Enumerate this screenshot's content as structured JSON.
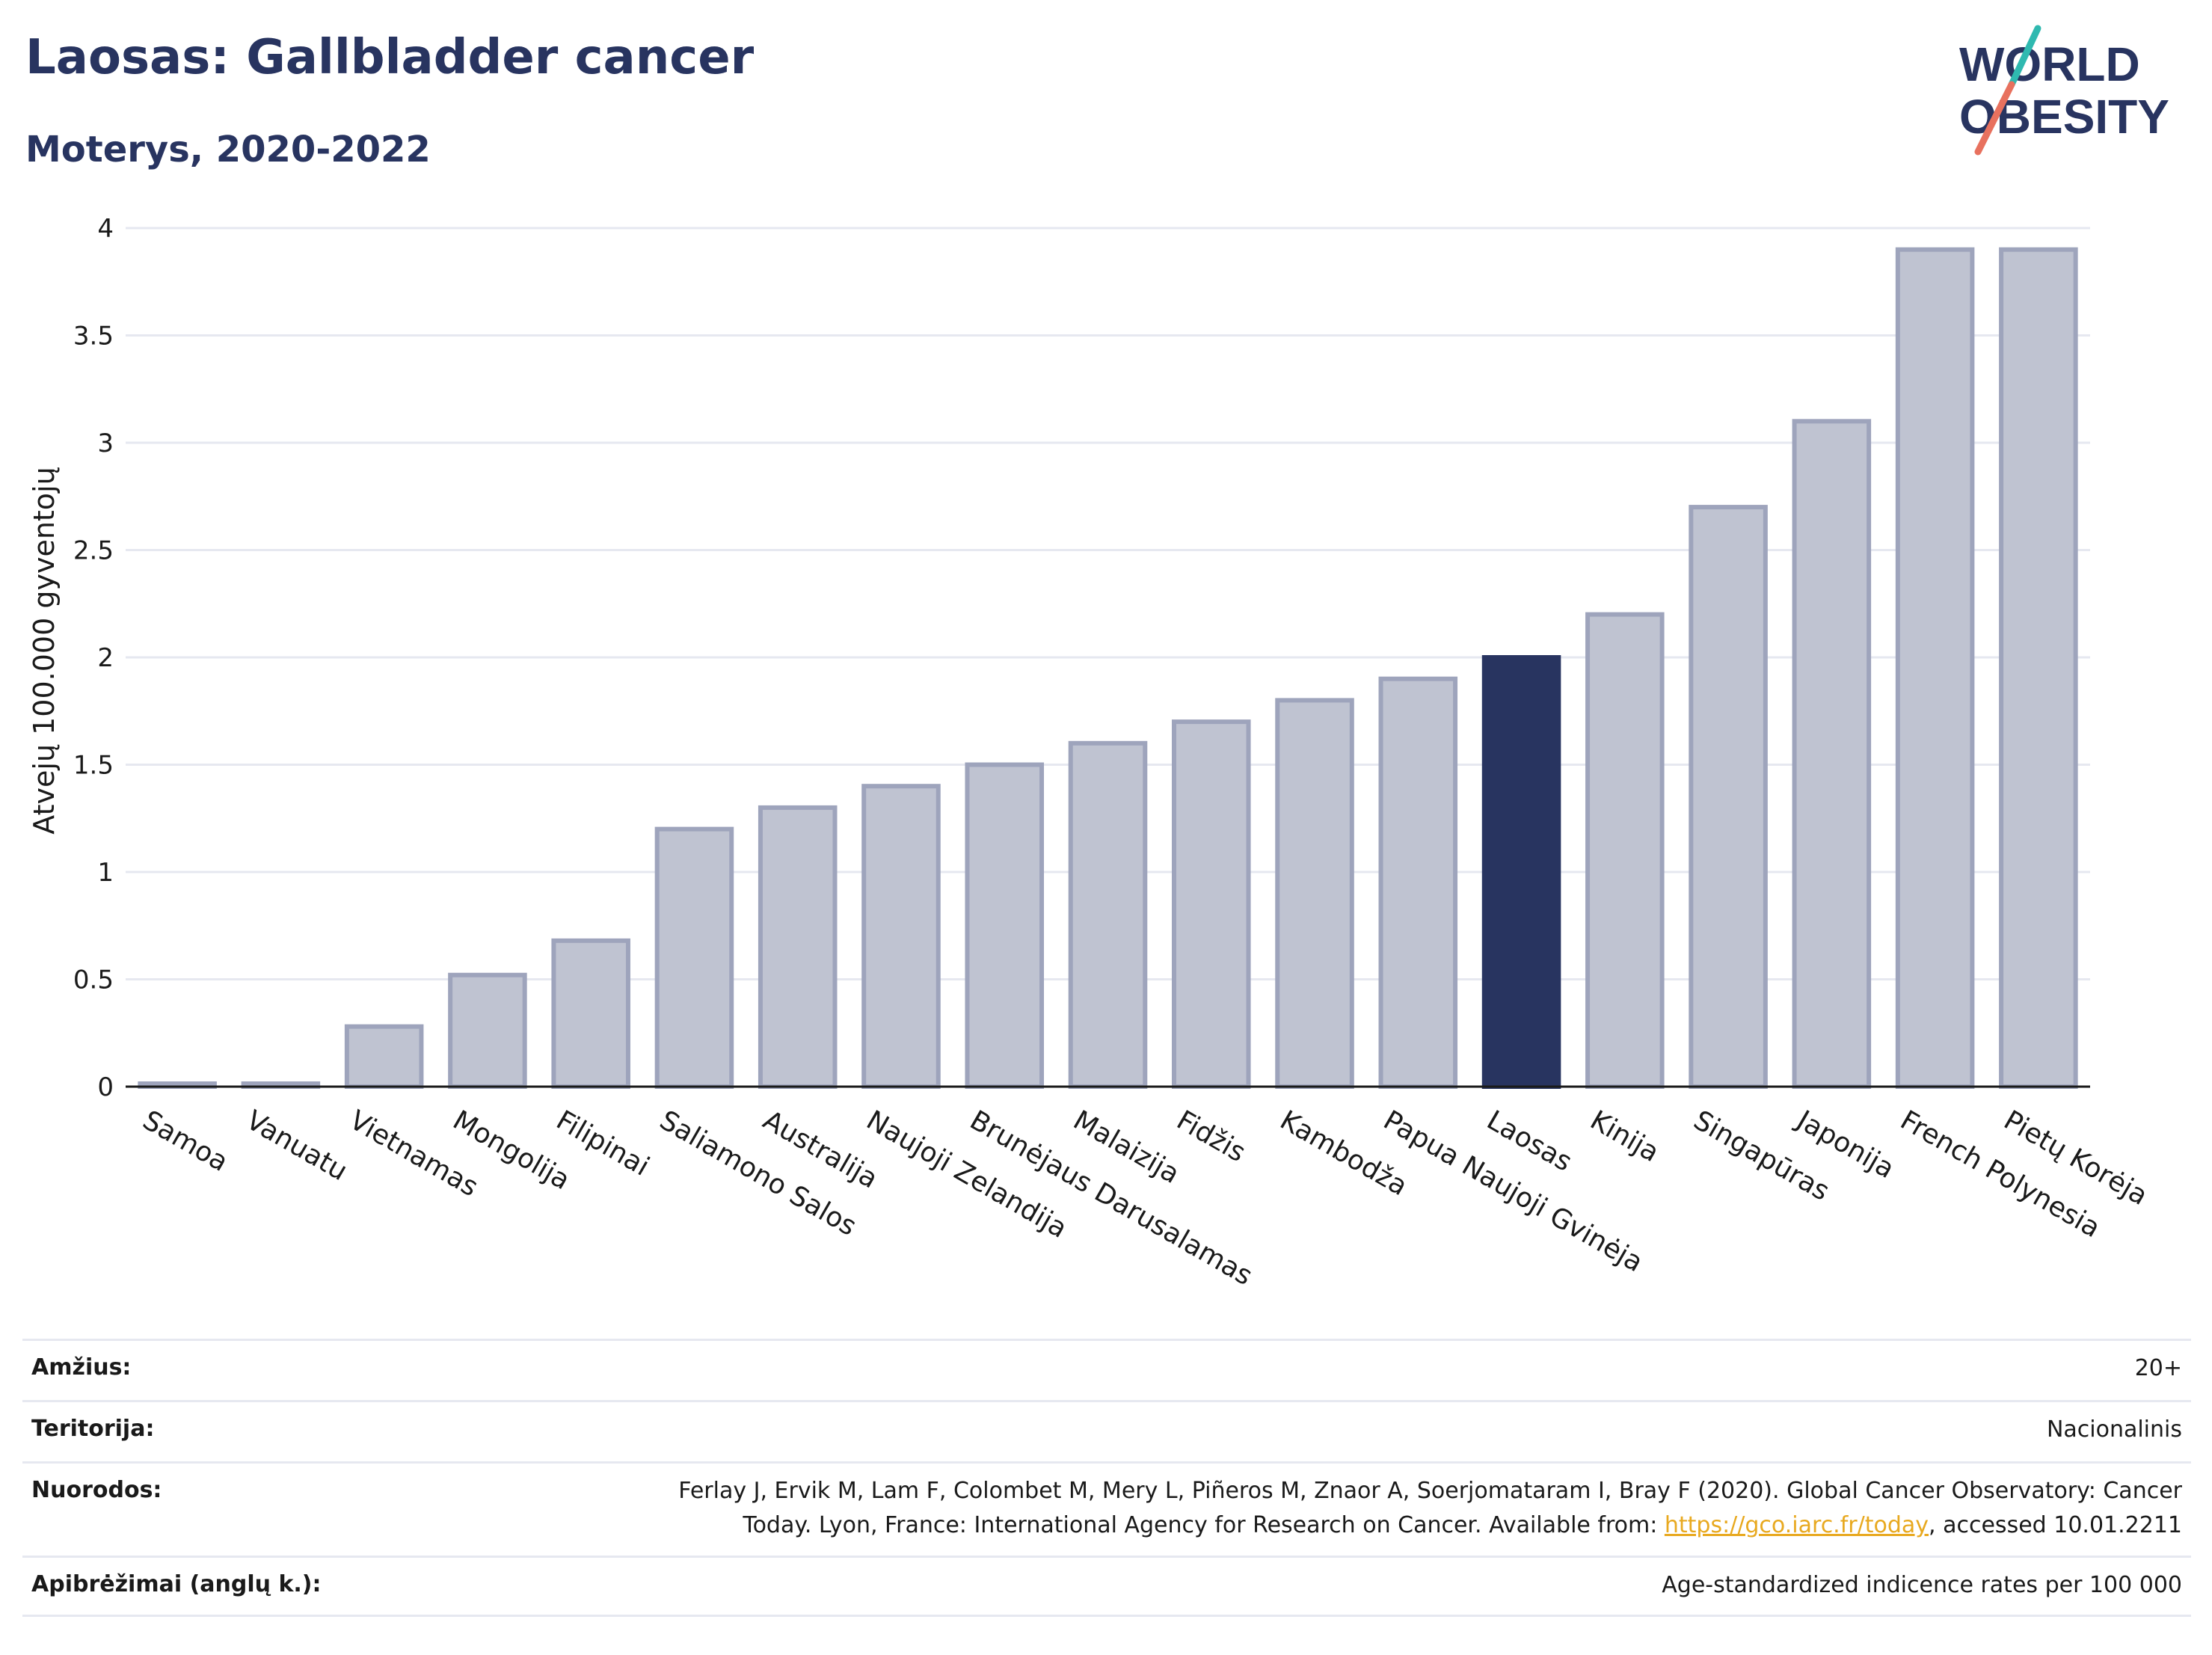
{
  "header": {
    "title": "Laosas: Gallbladder cancer",
    "subtitle": "Moterys, 2020-2022"
  },
  "logo": {
    "line1": "WORLD",
    "line2": "OBESITY",
    "accent_teal": "#2fb9b0",
    "accent_coral": "#e8715e"
  },
  "colors": {
    "bar": "#bfc3d1",
    "bar_border": "#9ea4bc",
    "highlight": "#283460",
    "grid": "#e6e8f0"
  },
  "chart_data": {
    "type": "bar",
    "categories": [
      "Samoa",
      "Vanuatu",
      "Vietnamas",
      "Mongolija",
      "Filipinai",
      "Saliamono Salos",
      "Australija",
      "Naujoji Zelandija",
      "Brunėjaus Darusalamas",
      "Malaizija",
      "Fidžis",
      "Kambodža",
      "Papua Naujoji Gvinėja",
      "Laosas",
      "Kinija",
      "Singapūras",
      "Japonija",
      "French Polynesia",
      "Pietų Korėja"
    ],
    "values": [
      0.01,
      0.01,
      0.28,
      0.52,
      0.68,
      1.2,
      1.3,
      1.4,
      1.5,
      1.6,
      1.7,
      1.8,
      1.9,
      2.0,
      2.2,
      2.7,
      3.1,
      3.9,
      3.9
    ],
    "highlight": "Laosas",
    "ylabel": "Atvejų 100.000 gyventojų",
    "ylim": [
      0,
      4
    ],
    "yticks": [
      0,
      0.5,
      1,
      1.5,
      2,
      2.5,
      3,
      3.5,
      4
    ],
    "ytick_labels": [
      "0",
      "0.5",
      "1",
      "1.5",
      "2",
      "2.5",
      "3",
      "3.5",
      "4"
    ],
    "grid": true
  },
  "footer": {
    "age_label": "Amžius:",
    "age_value": "20+",
    "territory_label": "Teritorija:",
    "territory_value": "Nacionalinis",
    "refs_label": "Nuorodos:",
    "refs_line1": "Ferlay J, Ervik M, Lam F, Colombet M, Mery L, Piñeros M, Znaor A, Soerjomataram I, Bray F (2020). Global Cancer Observatory: Cancer",
    "refs_line2_pre": "Today. Lyon, France: International Agency for Research on Cancer. Available from: ",
    "refs_link": "https://gco.iarc.fr/today",
    "refs_line2_post": ", accessed 10.01.2211",
    "defs_label": "Apibrėžimai (anglų k.):",
    "defs_value": "Age-standardized indicence rates per 100 000"
  }
}
